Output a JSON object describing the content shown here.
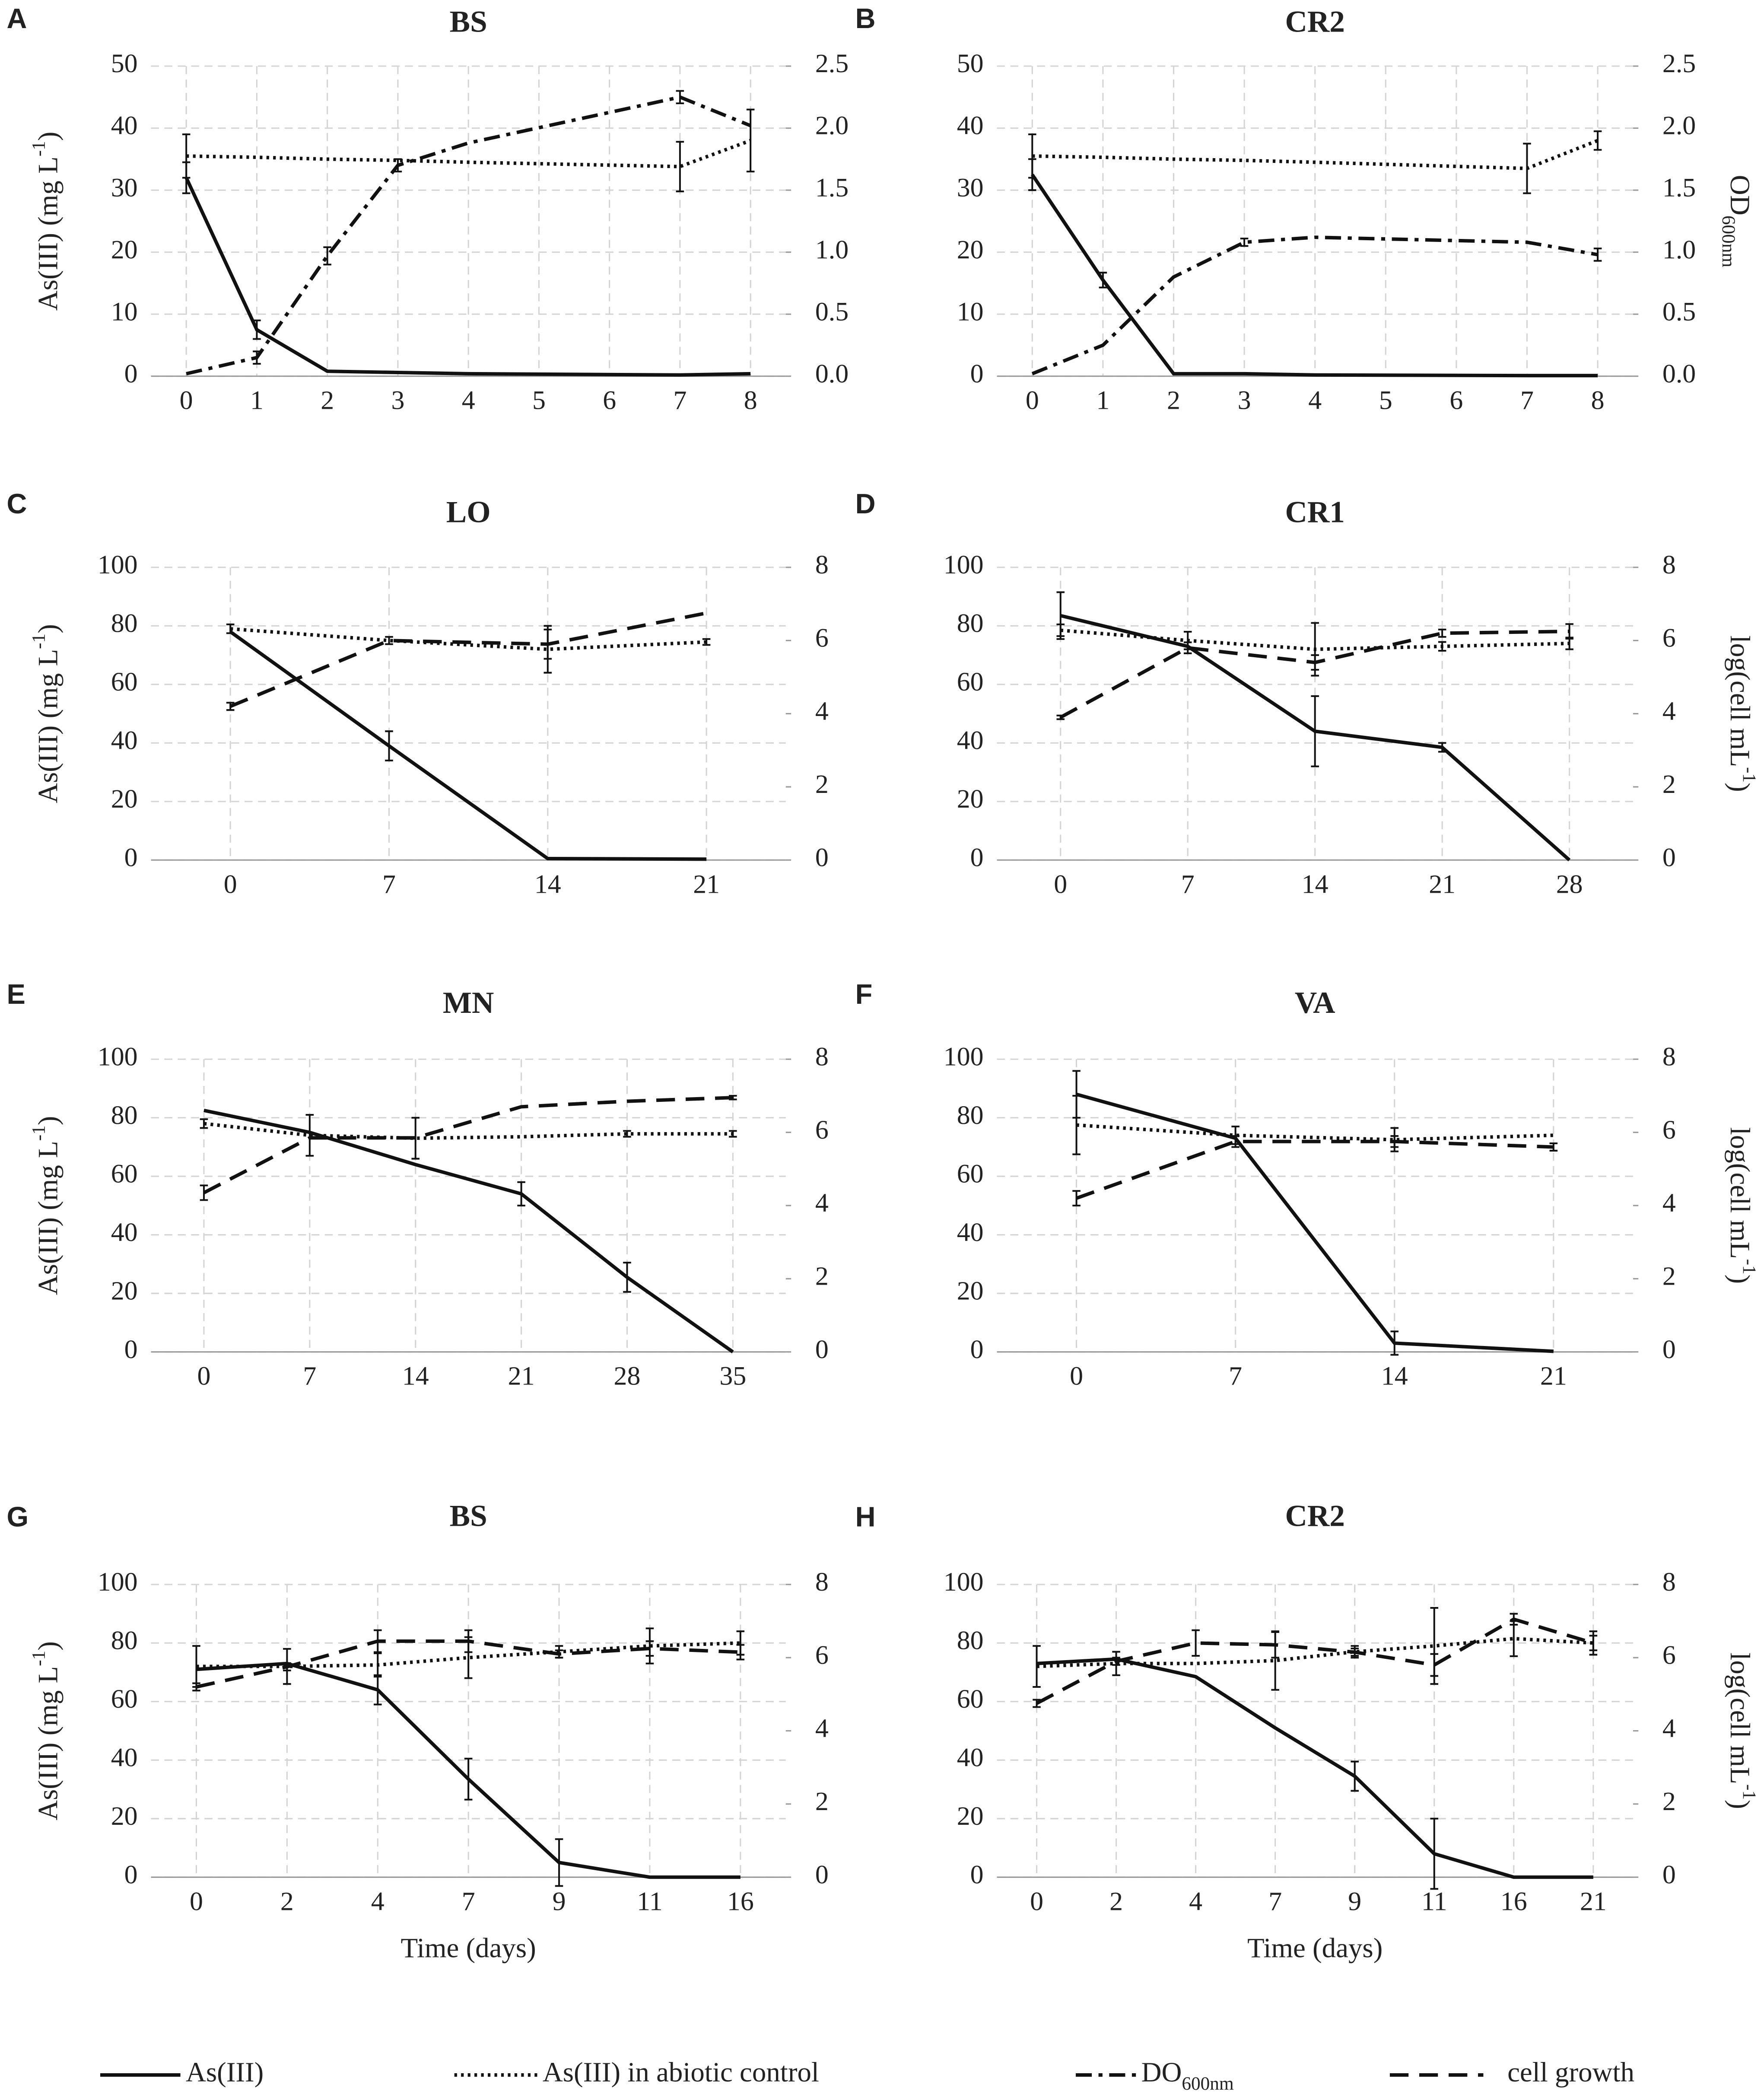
{
  "chart_data": [
    {
      "type": "line",
      "panel": "A",
      "title": "BS",
      "x": [
        0,
        1,
        2,
        3,
        4,
        7,
        8
      ],
      "xlim": [
        -0.5,
        8.5
      ],
      "xticks": [
        0,
        1,
        2,
        3,
        4,
        5,
        6,
        7,
        8
      ],
      "ylim": [
        0,
        50
      ],
      "yticks": [
        0,
        10,
        20,
        30,
        40,
        50
      ],
      "y2lim": [
        0,
        2.5
      ],
      "y2ticks": [
        {
          "value": 0,
          "label": "0.0"
        },
        0.5,
        {
          "value": 1,
          "label": "1.0"
        },
        1.5,
        {
          "value": 2,
          "label": "2.0"
        },
        2.5
      ],
      "y_label": [
        "As(III) (mg L",
        "-1",
        ")"
      ],
      "grid": true,
      "series": [
        {
          "style": "solid",
          "values": [
            32,
            7.5,
            0.8,
            0.6,
            0.4,
            0.2,
            0.4
          ],
          "errors": [
            2.5,
            1.5,
            null,
            null,
            null,
            null,
            null
          ]
        },
        {
          "style": "dotted",
          "values": [
            35.5,
            35.3,
            35,
            34.8,
            34.5,
            33.8,
            38
          ],
          "errors": [
            3.5,
            null,
            null,
            null,
            null,
            4,
            5
          ]
        },
        {
          "style": "dashdot",
          "axis": "y2",
          "values": [
            0.02,
            0.15,
            0.97,
            1.7,
            1.88,
            2.25,
            2.02
          ],
          "errors": [
            null,
            0.05,
            0.07,
            0.05,
            null,
            0.05,
            null
          ]
        }
      ]
    },
    {
      "type": "line",
      "panel": "B",
      "title": "CR2",
      "x": [
        0,
        1,
        2,
        3,
        4,
        7,
        8
      ],
      "xlim": [
        -0.5,
        8.5
      ],
      "xticks": [
        0,
        1,
        2,
        3,
        4,
        5,
        6,
        7,
        8
      ],
      "ylim": [
        0,
        50
      ],
      "yticks": [
        0,
        10,
        20,
        30,
        40,
        50
      ],
      "y2lim": [
        0,
        2.5
      ],
      "y2ticks": [
        {
          "value": 0,
          "label": "0.0"
        },
        0.5,
        {
          "value": 1,
          "label": "1.0"
        },
        1.5,
        {
          "value": 2,
          "label": "2.0"
        },
        2.5
      ],
      "y2_label": [
        "OD",
        "600nm"
      ],
      "grid": true,
      "series": [
        {
          "style": "solid",
          "values": [
            32.5,
            15.5,
            0.4,
            0.4,
            0.2,
            0.1,
            0.1
          ],
          "errors": [
            2.5,
            1.2,
            null,
            null,
            null,
            null,
            null
          ]
        },
        {
          "style": "dotted",
          "values": [
            35.5,
            35.3,
            35,
            34.8,
            34.5,
            33.5,
            38
          ],
          "errors": [
            3.5,
            null,
            null,
            null,
            null,
            4,
            1.5
          ]
        },
        {
          "style": "dashdot",
          "axis": "y2",
          "values": [
            0.02,
            0.25,
            0.8,
            1.08,
            1.12,
            1.08,
            0.98
          ],
          "errors": [
            null,
            null,
            null,
            0.03,
            null,
            null,
            0.05
          ]
        }
      ]
    },
    {
      "type": "line",
      "panel": "C",
      "title": "LO",
      "categories": [
        "0",
        "7",
        "14",
        "21"
      ],
      "ylim": [
        0,
        100
      ],
      "yticks": [
        0,
        20,
        40,
        60,
        80,
        100
      ],
      "y2lim": [
        0,
        8
      ],
      "y2ticks": [
        0,
        2,
        4,
        6,
        8
      ],
      "y_label": [
        "As(III) (mg L",
        "-1",
        ")"
      ],
      "grid": true,
      "series": [
        {
          "style": "solid",
          "values": [
            78,
            39,
            0.5,
            0.3
          ],
          "errors": [
            null,
            5,
            null,
            null
          ]
        },
        {
          "style": "dotted",
          "values": [
            79,
            75,
            72,
            74.5
          ],
          "errors": [
            1.5,
            null,
            8,
            1
          ]
        },
        {
          "style": "dashed",
          "axis": "y2",
          "values": [
            4.2,
            6.0,
            5.9,
            6.75
          ],
          "errors": [
            0.1,
            0.1,
            0.4,
            null
          ]
        }
      ]
    },
    {
      "type": "line",
      "panel": "D",
      "title": "CR1",
      "categories": [
        "0",
        "7",
        "14",
        "21",
        "28"
      ],
      "ylim": [
        0,
        100
      ],
      "yticks": [
        0,
        20,
        40,
        60,
        80,
        100
      ],
      "y2lim": [
        0,
        8
      ],
      "y2ticks": [
        0,
        2,
        4,
        6,
        8
      ],
      "y2_label": [
        "log(cell mL",
        "-1",
        ")"
      ],
      "grid": true,
      "series": [
        {
          "style": "solid",
          "values": [
            83.5,
            73,
            44,
            38.5,
            0
          ],
          "errors": [
            8,
            null,
            12,
            1.5,
            null
          ]
        },
        {
          "style": "dotted",
          "values": [
            78.5,
            75,
            72,
            73,
            74
          ],
          "errors": [
            2,
            3,
            9,
            1.5,
            2
          ]
        },
        {
          "style": "dashed",
          "axis": "y2",
          "values": [
            3.9,
            5.8,
            5.4,
            6.2,
            6.25
          ],
          "errors": [
            0.05,
            0.15,
            0.2,
            0.1,
            0.2
          ]
        }
      ]
    },
    {
      "type": "line",
      "panel": "E",
      "title": "MN",
      "categories": [
        "0",
        "7",
        "14",
        "21",
        "28",
        "35"
      ],
      "ylim": [
        0,
        100
      ],
      "yticks": [
        0,
        20,
        40,
        60,
        80,
        100
      ],
      "y2lim": [
        0,
        8
      ],
      "y2ticks": [
        0,
        2,
        4,
        6,
        8
      ],
      "y_label": [
        "As(III) (mg L",
        "-1",
        ")"
      ],
      "grid": true,
      "series": [
        {
          "style": "solid",
          "values": [
            82.5,
            75,
            64,
            54,
            25.5,
            0
          ],
          "errors": [
            null,
            null,
            null,
            4,
            5,
            null
          ]
        },
        {
          "style": "dotted",
          "values": [
            78,
            74,
            73,
            73.5,
            74.5,
            74.5
          ],
          "errors": [
            1.5,
            7,
            7,
            null,
            1,
            1
          ]
        },
        {
          "style": "dashed",
          "axis": "y2",
          "values": [
            4.35,
            5.85,
            5.85,
            6.7,
            6.85,
            6.95
          ],
          "errors": [
            0.2,
            null,
            null,
            null,
            null,
            0.05
          ]
        }
      ]
    },
    {
      "type": "line",
      "panel": "F",
      "title": "VA",
      "categories": [
        "0",
        "7",
        "14",
        "21"
      ],
      "ylim": [
        0,
        100
      ],
      "yticks": [
        0,
        20,
        40,
        60,
        80,
        100
      ],
      "y2lim": [
        0,
        8
      ],
      "y2ticks": [
        0,
        2,
        4,
        6,
        8
      ],
      "y2_label": [
        "log(cell mL",
        "-1",
        ")"
      ],
      "grid": true,
      "series": [
        {
          "style": "solid",
          "values": [
            88,
            73,
            3,
            0.2
          ],
          "errors": [
            8,
            null,
            4,
            null
          ]
        },
        {
          "style": "dotted",
          "values": [
            77.5,
            74,
            72.5,
            74
          ],
          "errors": [
            10,
            3,
            4,
            null
          ]
        },
        {
          "style": "dashed",
          "axis": "y2",
          "values": [
            4.2,
            5.75,
            5.75,
            5.6
          ],
          "errors": [
            0.2,
            0.15,
            0.15,
            0.1
          ]
        }
      ]
    },
    {
      "type": "line",
      "panel": "G",
      "title": "BS",
      "categories": [
        "0",
        "2",
        "4",
        "7",
        "9",
        "11",
        "16"
      ],
      "ylim": [
        0,
        100
      ],
      "yticks": [
        0,
        20,
        40,
        60,
        80,
        100
      ],
      "y2lim": [
        0,
        8
      ],
      "y2ticks": [
        0,
        2,
        4,
        6,
        8
      ],
      "y_label": [
        "As(III) (mg L",
        "-1",
        ")"
      ],
      "x_label": "Time (days)",
      "grid": true,
      "series": [
        {
          "style": "solid",
          "values": [
            71,
            73,
            64,
            33.5,
            5,
            0,
            0
          ],
          "errors": [
            null,
            null,
            5,
            7,
            8,
            null,
            null
          ]
        },
        {
          "style": "dotted",
          "values": [
            72,
            72,
            72.5,
            75,
            77,
            79,
            80
          ],
          "errors": [
            7,
            6,
            4,
            7,
            2,
            6,
            4
          ]
        },
        {
          "style": "dashed",
          "axis": "y2",
          "values": [
            5.2,
            5.75,
            6.45,
            6.45,
            6.1,
            6.25,
            6.15
          ],
          "errors": [
            0.1,
            0.1,
            0.3,
            0.3,
            0.1,
            0.2,
            0.2
          ]
        }
      ]
    },
    {
      "type": "line",
      "panel": "H",
      "title": "CR2",
      "categories": [
        "0",
        "2",
        "4",
        "7",
        "9",
        "11",
        "16",
        "21"
      ],
      "ylim": [
        0,
        100
      ],
      "yticks": [
        0,
        20,
        40,
        60,
        80,
        100
      ],
      "y2lim": [
        0,
        8
      ],
      "y2ticks": [
        0,
        2,
        4,
        6,
        8
      ],
      "y2_label": [
        "log(cell mL",
        "-1",
        ")"
      ],
      "x_label": "Time (days)",
      "grid": true,
      "series": [
        {
          "style": "solid",
          "values": [
            73,
            74.5,
            68.5,
            51,
            34.5,
            8,
            0,
            0
          ],
          "errors": [
            null,
            null,
            null,
            null,
            5,
            12,
            null,
            null
          ]
        },
        {
          "style": "dotted",
          "values": [
            72,
            73,
            73,
            74,
            77,
            79,
            81.5,
            80
          ],
          "errors": [
            7,
            4,
            null,
            10,
            2,
            13,
            6,
            4
          ]
        },
        {
          "style": "dashed",
          "axis": "y2",
          "values": [
            4.75,
            5.9,
            6.4,
            6.35,
            6.15,
            5.8,
            7.05,
            6.4
          ],
          "errors": [
            0.1,
            0.1,
            0.35,
            0.35,
            0.1,
            0.3,
            0.15,
            0.2
          ]
        }
      ]
    }
  ],
  "legend": [
    {
      "text": [
        "As(III)"
      ],
      "style": "solid"
    },
    {
      "text": [
        "As(III) in abiotic control"
      ],
      "style": "dotted"
    },
    {
      "text": [
        "DO",
        "600nm"
      ],
      "style": "dashdot"
    },
    {
      "text": [
        "cell growth"
      ],
      "style": "dashed"
    }
  ]
}
